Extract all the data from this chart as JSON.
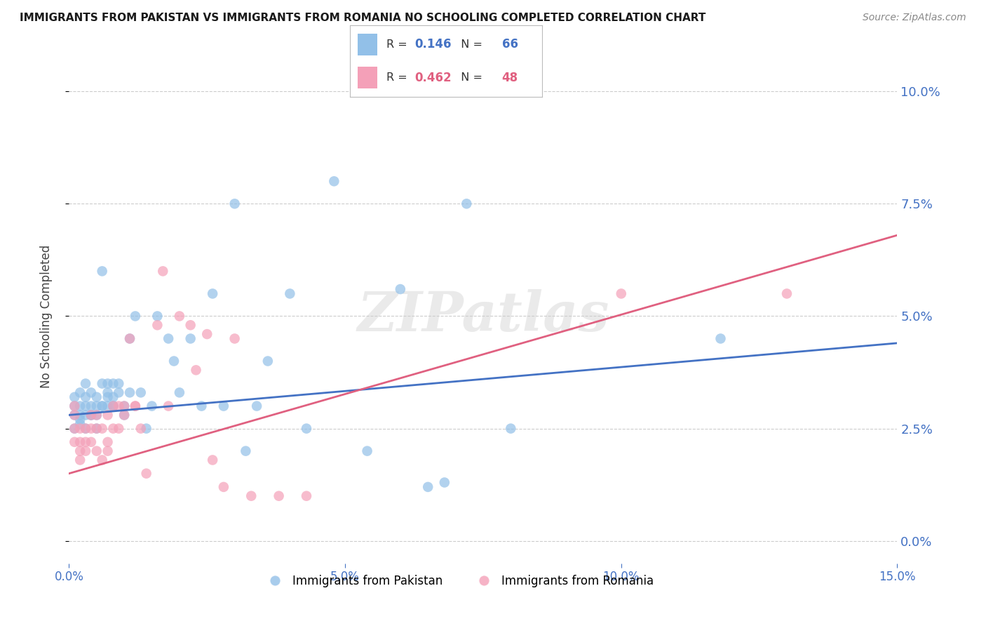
{
  "title": "IMMIGRANTS FROM PAKISTAN VS IMMIGRANTS FROM ROMANIA NO SCHOOLING COMPLETED CORRELATION CHART",
  "source": "Source: ZipAtlas.com",
  "ylabel": "No Schooling Completed",
  "xlim": [
    0.0,
    0.15
  ],
  "ylim": [
    -0.005,
    0.105
  ],
  "yticks": [
    0.0,
    0.025,
    0.05,
    0.075,
    0.1
  ],
  "xticks": [
    0.0,
    0.05,
    0.1,
    0.15
  ],
  "pakistan_color": "#92c0e8",
  "romania_color": "#f4a0b8",
  "pakistan_line_color": "#4472c4",
  "romania_line_color": "#e06080",
  "pakistan_R": 0.146,
  "pakistan_N": 66,
  "romania_R": 0.462,
  "romania_N": 48,
  "legend_label_pakistan": "Immigrants from Pakistan",
  "legend_label_romania": "Immigrants from Romania",
  "watermark": "ZIPatlas",
  "pakistan_line_x0": 0.0,
  "pakistan_line_y0": 0.028,
  "pakistan_line_x1": 0.15,
  "pakistan_line_y1": 0.044,
  "romania_line_x0": 0.0,
  "romania_line_y0": 0.015,
  "romania_line_x1": 0.15,
  "romania_line_y1": 0.068,
  "pakistan_x": [
    0.001,
    0.001,
    0.001,
    0.001,
    0.002,
    0.002,
    0.002,
    0.002,
    0.002,
    0.003,
    0.003,
    0.003,
    0.003,
    0.003,
    0.004,
    0.004,
    0.004,
    0.004,
    0.005,
    0.005,
    0.005,
    0.005,
    0.006,
    0.006,
    0.006,
    0.006,
    0.007,
    0.007,
    0.007,
    0.007,
    0.008,
    0.008,
    0.008,
    0.008,
    0.009,
    0.009,
    0.01,
    0.01,
    0.011,
    0.011,
    0.012,
    0.013,
    0.014,
    0.015,
    0.016,
    0.018,
    0.019,
    0.02,
    0.022,
    0.024,
    0.026,
    0.028,
    0.03,
    0.032,
    0.034,
    0.036,
    0.04,
    0.043,
    0.048,
    0.054,
    0.06,
    0.065,
    0.068,
    0.072,
    0.08,
    0.118
  ],
  "pakistan_y": [
    0.028,
    0.032,
    0.025,
    0.03,
    0.026,
    0.03,
    0.028,
    0.033,
    0.027,
    0.028,
    0.03,
    0.032,
    0.025,
    0.035,
    0.028,
    0.033,
    0.03,
    0.028,
    0.03,
    0.025,
    0.028,
    0.032,
    0.06,
    0.03,
    0.035,
    0.03,
    0.03,
    0.035,
    0.032,
    0.033,
    0.035,
    0.03,
    0.032,
    0.03,
    0.033,
    0.035,
    0.028,
    0.03,
    0.045,
    0.033,
    0.05,
    0.033,
    0.025,
    0.03,
    0.05,
    0.045,
    0.04,
    0.033,
    0.045,
    0.03,
    0.055,
    0.03,
    0.075,
    0.02,
    0.03,
    0.04,
    0.055,
    0.025,
    0.08,
    0.02,
    0.056,
    0.012,
    0.013,
    0.075,
    0.025,
    0.045
  ],
  "romania_x": [
    0.001,
    0.001,
    0.001,
    0.001,
    0.002,
    0.002,
    0.002,
    0.002,
    0.003,
    0.003,
    0.003,
    0.004,
    0.004,
    0.004,
    0.005,
    0.005,
    0.005,
    0.006,
    0.006,
    0.007,
    0.007,
    0.007,
    0.008,
    0.008,
    0.009,
    0.009,
    0.01,
    0.01,
    0.011,
    0.012,
    0.012,
    0.013,
    0.014,
    0.016,
    0.017,
    0.018,
    0.02,
    0.022,
    0.023,
    0.025,
    0.026,
    0.028,
    0.03,
    0.033,
    0.038,
    0.043,
    0.1,
    0.13
  ],
  "romania_y": [
    0.03,
    0.025,
    0.028,
    0.022,
    0.02,
    0.025,
    0.018,
    0.022,
    0.025,
    0.02,
    0.022,
    0.025,
    0.028,
    0.022,
    0.025,
    0.02,
    0.028,
    0.018,
    0.025,
    0.028,
    0.022,
    0.02,
    0.025,
    0.03,
    0.025,
    0.03,
    0.028,
    0.03,
    0.045,
    0.03,
    0.03,
    0.025,
    0.015,
    0.048,
    0.06,
    0.03,
    0.05,
    0.048,
    0.038,
    0.046,
    0.018,
    0.012,
    0.045,
    0.01,
    0.01,
    0.01,
    0.055,
    0.055
  ]
}
